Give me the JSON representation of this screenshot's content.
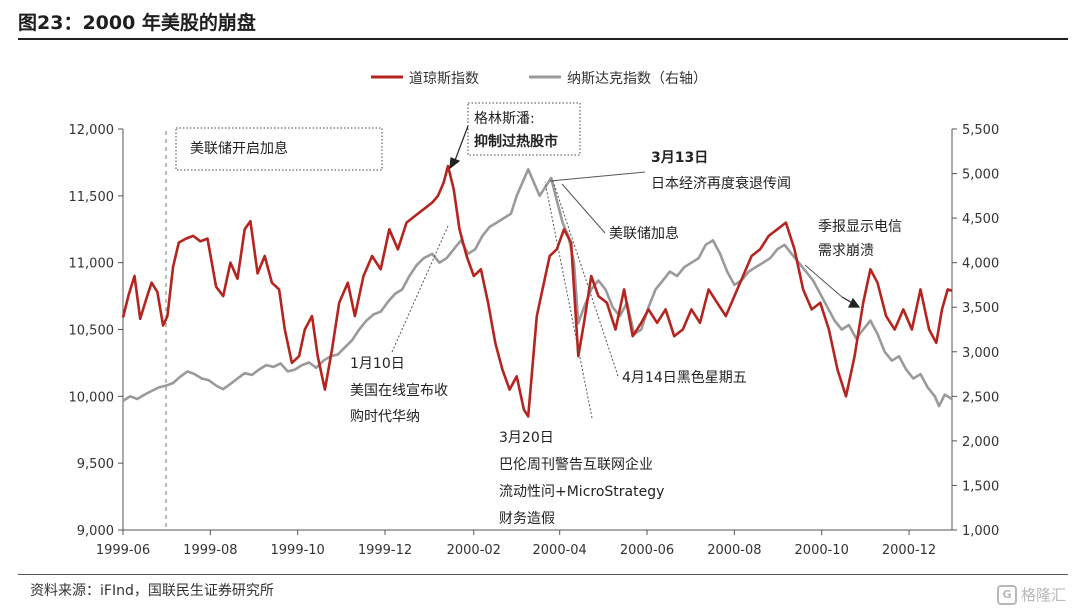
{
  "header": {
    "title": "图23：2000 年美股的崩盘"
  },
  "footer": {
    "source": "资料来源：iFInd，国联民生证券研究所",
    "watermark": "格隆汇",
    "watermark_logo": "G"
  },
  "colors": {
    "dow": "#b5241e",
    "nasdaq": "#9a9a9a",
    "axis": "#555555",
    "text": "#333333"
  },
  "chart_data": {
    "type": "line",
    "title": "图23：2000 年美股的崩盘",
    "legend": [
      "道琼斯指数",
      "纳斯达克指数（右轴）"
    ],
    "legend_position": "top-center",
    "x_ticks": [
      "1999-06",
      "1999-08",
      "1999-10",
      "1999-12",
      "2000-02",
      "2000-04",
      "2000-06",
      "2000-08",
      "2000-10",
      "2000-12"
    ],
    "x_range": [
      "1999-06-01",
      "2000-12-31"
    ],
    "y_left": {
      "min": 9000,
      "max": 12000,
      "ticks": [
        "9,000",
        "9,500",
        "10,000",
        "10,500",
        "11,000",
        "11,500",
        "12,000"
      ]
    },
    "y_right": {
      "min": 1000,
      "max": 5500,
      "ticks": [
        "1,000",
        "1,500",
        "2,000",
        "2,500",
        "3,000",
        "3,500",
        "4,000",
        "4,500",
        "5,000",
        "5,500"
      ]
    },
    "series": [
      {
        "name": "道琼斯指数",
        "axis": "left",
        "color": "#b5241e",
        "points": [
          [
            "1999-06-01",
            10590
          ],
          [
            "1999-06-05",
            10760
          ],
          [
            "1999-06-09",
            10900
          ],
          [
            "1999-06-13",
            10580
          ],
          [
            "1999-06-17",
            10720
          ],
          [
            "1999-06-21",
            10850
          ],
          [
            "1999-06-25",
            10780
          ],
          [
            "1999-06-29",
            10530
          ],
          [
            "1999-07-02",
            10600
          ],
          [
            "1999-07-06",
            10970
          ],
          [
            "1999-07-10",
            11150
          ],
          [
            "1999-07-15",
            11180
          ],
          [
            "1999-07-20",
            11200
          ],
          [
            "1999-07-25",
            11160
          ],
          [
            "1999-07-30",
            11180
          ],
          [
            "1999-08-05",
            10820
          ],
          [
            "1999-08-10",
            10750
          ],
          [
            "1999-08-15",
            11000
          ],
          [
            "1999-08-20",
            10880
          ],
          [
            "1999-08-25",
            11250
          ],
          [
            "1999-08-29",
            11310
          ],
          [
            "1999-09-03",
            10920
          ],
          [
            "1999-09-08",
            11050
          ],
          [
            "1999-09-13",
            10850
          ],
          [
            "1999-09-18",
            10800
          ],
          [
            "1999-09-22",
            10500
          ],
          [
            "1999-09-27",
            10250
          ],
          [
            "1999-10-02",
            10300
          ],
          [
            "1999-10-06",
            10500
          ],
          [
            "1999-10-11",
            10600
          ],
          [
            "1999-10-15",
            10300
          ],
          [
            "1999-10-20",
            10050
          ],
          [
            "1999-10-25",
            10350
          ],
          [
            "1999-10-30",
            10700
          ],
          [
            "1999-11-05",
            10850
          ],
          [
            "1999-11-10",
            10600
          ],
          [
            "1999-11-16",
            10900
          ],
          [
            "1999-11-22",
            11050
          ],
          [
            "1999-11-28",
            10950
          ],
          [
            "1999-12-04",
            11250
          ],
          [
            "1999-12-10",
            11100
          ],
          [
            "1999-12-16",
            11300
          ],
          [
            "1999-12-22",
            11350
          ],
          [
            "1999-12-28",
            11400
          ],
          [
            "2000-01-03",
            11450
          ],
          [
            "2000-01-07",
            11500
          ],
          [
            "2000-01-11",
            11600
          ],
          [
            "2000-01-14",
            11723
          ],
          [
            "2000-01-18",
            11550
          ],
          [
            "2000-01-22",
            11250
          ],
          [
            "2000-01-27",
            11050
          ],
          [
            "2000-02-01",
            10900
          ],
          [
            "2000-02-06",
            10950
          ],
          [
            "2000-02-11",
            10700
          ],
          [
            "2000-02-16",
            10400
          ],
          [
            "2000-02-21",
            10200
          ],
          [
            "2000-02-26",
            10050
          ],
          [
            "2000-03-02",
            10150
          ],
          [
            "2000-03-07",
            9900
          ],
          [
            "2000-03-10",
            9850
          ],
          [
            "2000-03-16",
            10600
          ],
          [
            "2000-03-20",
            10800
          ],
          [
            "2000-03-25",
            11050
          ],
          [
            "2000-03-30",
            11100
          ],
          [
            "2000-04-04",
            11250
          ],
          [
            "2000-04-09",
            11150
          ],
          [
            "2000-04-14",
            10300
          ],
          [
            "2000-04-18",
            10550
          ],
          [
            "2000-04-23",
            10900
          ],
          [
            "2000-04-28",
            10750
          ],
          [
            "2000-05-04",
            10700
          ],
          [
            "2000-05-10",
            10500
          ],
          [
            "2000-05-16",
            10800
          ],
          [
            "2000-05-22",
            10450
          ],
          [
            "2000-05-28",
            10550
          ],
          [
            "2000-06-02",
            10650
          ],
          [
            "2000-06-08",
            10550
          ],
          [
            "2000-06-14",
            10650
          ],
          [
            "2000-06-20",
            10450
          ],
          [
            "2000-06-26",
            10500
          ],
          [
            "2000-07-02",
            10650
          ],
          [
            "2000-07-08",
            10550
          ],
          [
            "2000-07-14",
            10800
          ],
          [
            "2000-07-20",
            10700
          ],
          [
            "2000-07-26",
            10600
          ],
          [
            "2000-08-01",
            10750
          ],
          [
            "2000-08-07",
            10900
          ],
          [
            "2000-08-13",
            11050
          ],
          [
            "2000-08-19",
            11100
          ],
          [
            "2000-08-25",
            11200
          ],
          [
            "2000-08-31",
            11250
          ],
          [
            "2000-09-06",
            11300
          ],
          [
            "2000-09-12",
            11100
          ],
          [
            "2000-09-18",
            10800
          ],
          [
            "2000-09-24",
            10650
          ],
          [
            "2000-09-30",
            10700
          ],
          [
            "2000-10-06",
            10500
          ],
          [
            "2000-10-12",
            10200
          ],
          [
            "2000-10-18",
            10000
          ],
          [
            "2000-10-24",
            10300
          ],
          [
            "2000-10-30",
            10700
          ],
          [
            "2000-11-04",
            10950
          ],
          [
            "2000-11-09",
            10850
          ],
          [
            "2000-11-15",
            10600
          ],
          [
            "2000-11-21",
            10500
          ],
          [
            "2000-11-27",
            10650
          ],
          [
            "2000-12-03",
            10500
          ],
          [
            "2000-12-09",
            10800
          ],
          [
            "2000-12-15",
            10500
          ],
          [
            "2000-12-20",
            10400
          ],
          [
            "2000-12-24",
            10650
          ],
          [
            "2000-12-28",
            10800
          ],
          [
            "2000-12-31",
            10790
          ]
        ]
      },
      {
        "name": "纳斯达克指数（右轴）",
        "axis": "right",
        "color": "#9a9a9a",
        "points": [
          [
            "1999-06-01",
            2450
          ],
          [
            "1999-06-06",
            2500
          ],
          [
            "1999-06-11",
            2470
          ],
          [
            "1999-06-16",
            2520
          ],
          [
            "1999-06-21",
            2560
          ],
          [
            "1999-06-26",
            2600
          ],
          [
            "1999-07-01",
            2620
          ],
          [
            "1999-07-06",
            2650
          ],
          [
            "1999-07-11",
            2720
          ],
          [
            "1999-07-16",
            2780
          ],
          [
            "1999-07-21",
            2750
          ],
          [
            "1999-07-26",
            2700
          ],
          [
            "1999-07-31",
            2680
          ],
          [
            "1999-08-05",
            2620
          ],
          [
            "1999-08-10",
            2580
          ],
          [
            "1999-08-15",
            2640
          ],
          [
            "1999-08-20",
            2700
          ],
          [
            "1999-08-25",
            2760
          ],
          [
            "1999-08-30",
            2740
          ],
          [
            "1999-09-04",
            2800
          ],
          [
            "1999-09-09",
            2850
          ],
          [
            "1999-09-14",
            2830
          ],
          [
            "1999-09-19",
            2870
          ],
          [
            "1999-09-24",
            2780
          ],
          [
            "1999-09-29",
            2800
          ],
          [
            "1999-10-04",
            2850
          ],
          [
            "1999-10-09",
            2880
          ],
          [
            "1999-10-14",
            2820
          ],
          [
            "1999-10-19",
            2900
          ],
          [
            "1999-10-24",
            2950
          ],
          [
            "1999-10-29",
            2970
          ],
          [
            "1999-11-03",
            3050
          ],
          [
            "1999-11-08",
            3130
          ],
          [
            "1999-11-13",
            3250
          ],
          [
            "1999-11-18",
            3350
          ],
          [
            "1999-11-23",
            3420
          ],
          [
            "1999-11-28",
            3450
          ],
          [
            "1999-12-03",
            3560
          ],
          [
            "1999-12-08",
            3650
          ],
          [
            "1999-12-13",
            3700
          ],
          [
            "1999-12-18",
            3850
          ],
          [
            "1999-12-23",
            3970
          ],
          [
            "1999-12-28",
            4050
          ],
          [
            "2000-01-03",
            4100
          ],
          [
            "2000-01-08",
            4000
          ],
          [
            "2000-01-13",
            4050
          ],
          [
            "2000-01-18",
            4150
          ],
          [
            "2000-01-23",
            4250
          ],
          [
            "2000-01-28",
            4100
          ],
          [
            "2000-02-02",
            4150
          ],
          [
            "2000-02-07",
            4300
          ],
          [
            "2000-02-12",
            4400
          ],
          [
            "2000-02-17",
            4450
          ],
          [
            "2000-02-22",
            4500
          ],
          [
            "2000-02-27",
            4550
          ],
          [
            "2000-03-02",
            4750
          ],
          [
            "2000-03-06",
            4900
          ],
          [
            "2000-03-10",
            5048
          ],
          [
            "2000-03-14",
            4900
          ],
          [
            "2000-03-18",
            4750
          ],
          [
            "2000-03-22",
            4850
          ],
          [
            "2000-03-26",
            4950
          ],
          [
            "2000-03-30",
            4700
          ],
          [
            "2000-04-03",
            4450
          ],
          [
            "2000-04-07",
            4300
          ],
          [
            "2000-04-11",
            4000
          ],
          [
            "2000-04-14",
            3320
          ],
          [
            "2000-04-18",
            3500
          ],
          [
            "2000-04-23",
            3700
          ],
          [
            "2000-04-28",
            3800
          ],
          [
            "2000-05-03",
            3700
          ],
          [
            "2000-05-08",
            3500
          ],
          [
            "2000-05-13",
            3400
          ],
          [
            "2000-05-18",
            3550
          ],
          [
            "2000-05-23",
            3200
          ],
          [
            "2000-05-28",
            3250
          ],
          [
            "2000-06-02",
            3500
          ],
          [
            "2000-06-07",
            3700
          ],
          [
            "2000-06-12",
            3800
          ],
          [
            "2000-06-17",
            3900
          ],
          [
            "2000-06-22",
            3850
          ],
          [
            "2000-06-27",
            3950
          ],
          [
            "2000-07-02",
            4000
          ],
          [
            "2000-07-07",
            4050
          ],
          [
            "2000-07-12",
            4200
          ],
          [
            "2000-07-17",
            4250
          ],
          [
            "2000-07-22",
            4100
          ],
          [
            "2000-07-27",
            3900
          ],
          [
            "2000-08-01",
            3750
          ],
          [
            "2000-08-06",
            3800
          ],
          [
            "2000-08-11",
            3900
          ],
          [
            "2000-08-16",
            3950
          ],
          [
            "2000-08-21",
            4000
          ],
          [
            "2000-08-26",
            4050
          ],
          [
            "2000-08-31",
            4150
          ],
          [
            "2000-09-05",
            4200
          ],
          [
            "2000-09-10",
            4100
          ],
          [
            "2000-09-15",
            4000
          ],
          [
            "2000-09-20",
            3900
          ],
          [
            "2000-09-25",
            3800
          ],
          [
            "2000-09-30",
            3650
          ],
          [
            "2000-10-05",
            3500
          ],
          [
            "2000-10-10",
            3350
          ],
          [
            "2000-10-15",
            3250
          ],
          [
            "2000-10-20",
            3300
          ],
          [
            "2000-10-25",
            3150
          ],
          [
            "2000-10-30",
            3250
          ],
          [
            "2000-11-04",
            3350
          ],
          [
            "2000-11-09",
            3200
          ],
          [
            "2000-11-14",
            3000
          ],
          [
            "2000-11-19",
            2900
          ],
          [
            "2000-11-24",
            2950
          ],
          [
            "2000-11-29",
            2800
          ],
          [
            "2000-12-04",
            2700
          ],
          [
            "2000-12-09",
            2750
          ],
          [
            "2000-12-14",
            2600
          ],
          [
            "2000-12-19",
            2500
          ],
          [
            "2000-12-22",
            2390
          ],
          [
            "2000-12-26",
            2520
          ],
          [
            "2000-12-31",
            2470
          ]
        ]
      }
    ],
    "annotations": {
      "fed_box": "美联储开启加息",
      "greenspan_box": [
        "格林斯潘:",
        "抑制过热股市"
      ],
      "mar13": [
        "3月13日",
        "日本经济再度衰退传闻"
      ],
      "fed_hike": "美联储加息",
      "telecom": [
        "季报显示电信",
        "需求崩溃"
      ],
      "jan10": [
        "1月10日",
        "美国在线宣布收",
        "购时代华纳"
      ],
      "apr14": "4月14日黑色星期五",
      "mar20": [
        "3月20日",
        "巴伦周刊警告互联网企业",
        "流动性问+MicroStrategy",
        "财务造假"
      ]
    }
  }
}
